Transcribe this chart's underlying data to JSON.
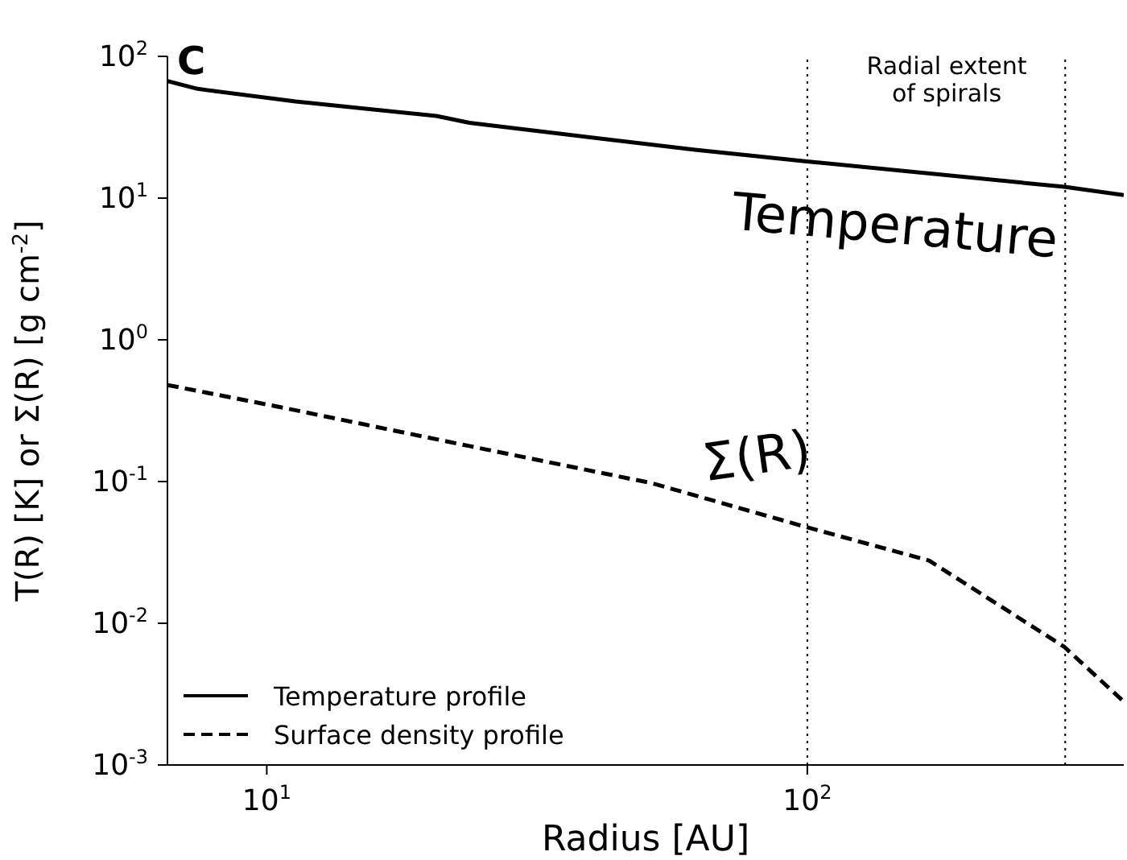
{
  "chart_data": {
    "type": "line",
    "xlabel": "Radius [AU]",
    "ylabel": "T(R) [K]  or  Σ(R) [g cm$^{-2}$]",
    "log": "xy",
    "xlim": [
      6.55,
      385
    ],
    "ylim": [
      0.001,
      100
    ],
    "xticks": [
      {
        "value": 10,
        "label": "10$^{1}$"
      },
      {
        "value": 100,
        "label": "10$^{2}$"
      }
    ],
    "yticks": [
      {
        "value": 0.001,
        "label": "10$^{-3}$"
      },
      {
        "value": 0.01,
        "label": "10$^{-2}$"
      },
      {
        "value": 0.1,
        "label": "10$^{-1}$"
      },
      {
        "value": 1,
        "label": "10$^{0}$"
      },
      {
        "value": 10,
        "label": "10$^{1}$"
      },
      {
        "value": 100,
        "label": "10$^{2}$"
      }
    ],
    "grid": false,
    "legend": "bottom left",
    "marker": "none",
    "series": [
      {
        "name": "Temperature profile",
        "color": "#000000",
        "line_style": "solid",
        "x": [
          6.55,
          7.45,
          11.3,
          20.6,
          23.7,
          62,
          99,
          299,
          385
        ],
        "values": [
          67,
          59,
          48,
          38,
          34,
          21.9,
          18.2,
          12.0,
          10.5
        ]
      },
      {
        "name": "Surface density profile",
        "color": "#000000",
        "line_style": "dashed",
        "x": [
          6.55,
          10.8,
          23.7,
          51.5,
          99,
          168,
          299,
          385
        ],
        "values": [
          0.48,
          0.33,
          0.178,
          0.0975,
          0.048,
          0.0277,
          0.0068,
          0.0028
        ]
      }
    ],
    "ref_lines": [
      {
        "axis": "x",
        "value": 100,
        "line_style": "dotted",
        "color": "#000000"
      },
      {
        "axis": "x",
        "value": 300,
        "line_style": "dotted",
        "color": "#000000"
      }
    ],
    "annotations": [
      "C",
      "Radial extent\nof spirals",
      "Temperature",
      "Σ(R)"
    ]
  }
}
